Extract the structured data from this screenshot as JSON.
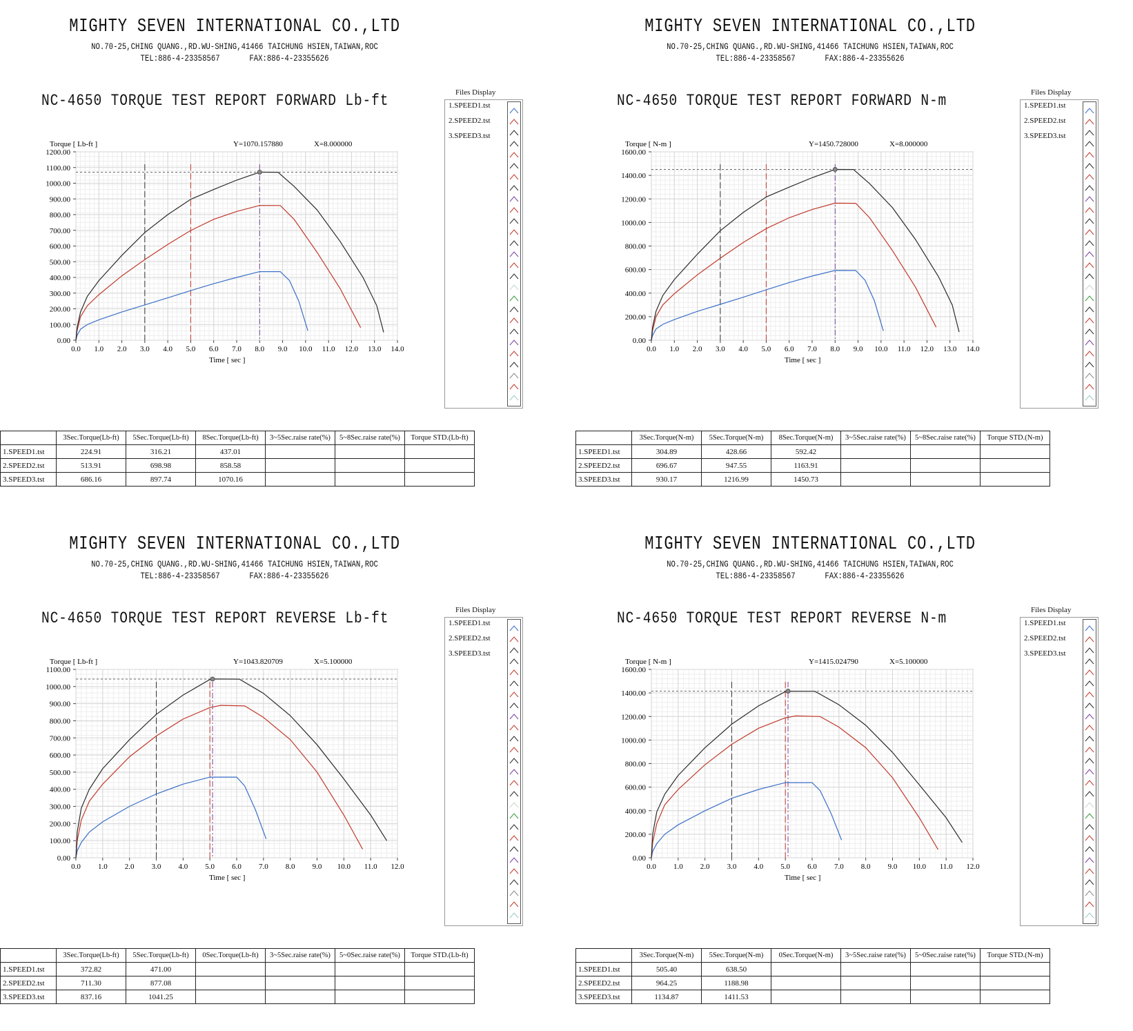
{
  "company": {
    "name": "MIGHTY SEVEN INTERNATIONAL CO.,LTD",
    "address": "NO.70-25,CHING QUANG.,RD.WU-SHING,41466 TAICHUNG HSIEN,TAIWAN,ROC",
    "tel": "TEL:886-4-23358567",
    "fax": "FAX:886-4-23355626"
  },
  "files_display": {
    "label": "Files Display",
    "files": [
      "1.SPEED1.tst",
      "2.SPEED2.tst",
      "3.SPEED3.tst"
    ]
  },
  "colors": {
    "speed1": "#3a6fc7",
    "speed2": "#c0392b",
    "speed3": "#2b2b2b"
  },
  "reports": [
    {
      "title": "NC-4650 TORQUE TEST REPORT FORWARD Lb-ft",
      "table": {
        "headers": [
          "3Sec.Torque(Lb-ft)",
          "5Sec.Torque(Lb-ft)",
          "8Sec.Torque(Lb-ft)",
          "3~5Sec.raise rate(%)",
          "5~8Sec.raise rate(%)",
          "Torque STD.(Lb-ft)"
        ],
        "rows": [
          {
            "name": "1.SPEED1.tst",
            "values": [
              "224.91",
              "316.21",
              "437.01",
              "",
              "",
              ""
            ]
          },
          {
            "name": "2.SPEED2.tst",
            "values": [
              "513.91",
              "698.98",
              "858.58",
              "",
              "",
              ""
            ]
          },
          {
            "name": "3.SPEED3.tst",
            "values": [
              "686.16",
              "897.74",
              "1070.16",
              "",
              "",
              ""
            ]
          }
        ]
      }
    },
    {
      "title": "NC-4650 TORQUE TEST REPORT FORWARD N-m",
      "table": {
        "headers": [
          "3Sec.Torque(N-m)",
          "5Sec.Torque(N-m)",
          "8Sec.Torque(N-m)",
          "3~5Sec.raise rate(%)",
          "5~8Sec.raise rate(%)",
          "Torque STD.(N-m)"
        ],
        "rows": [
          {
            "name": "1.SPEED1.tst",
            "values": [
              "304.89",
              "428.66",
              "592.42",
              "",
              "",
              ""
            ]
          },
          {
            "name": "2.SPEED2.tst",
            "values": [
              "696.67",
              "947.55",
              "1163.91",
              "",
              "",
              ""
            ]
          },
          {
            "name": "3.SPEED3.tst",
            "values": [
              "930.17",
              "1216.99",
              "1450.73",
              "",
              "",
              ""
            ]
          }
        ]
      }
    },
    {
      "title": "NC-4650 TORQUE TEST REPORT REVERSE Lb-ft",
      "table": {
        "headers": [
          "3Sec.Torque(Lb-ft)",
          "5Sec.Torque(Lb-ft)",
          "0Sec.Torque(Lb-ft)",
          "3~5Sec.raise rate(%)",
          "5~0Sec.raise rate(%)",
          "Torque STD.(Lb-ft)"
        ],
        "rows": [
          {
            "name": "1.SPEED1.tst",
            "values": [
              "372.82",
              "471.00",
              "",
              "",
              "",
              ""
            ]
          },
          {
            "name": "2.SPEED2.tst",
            "values": [
              "711.30",
              "877.08",
              "",
              "",
              "",
              ""
            ]
          },
          {
            "name": "3.SPEED3.tst",
            "values": [
              "837.16",
              "1041.25",
              "",
              "",
              "",
              ""
            ]
          }
        ]
      }
    },
    {
      "title": "NC-4650 TORQUE TEST REPORT REVERSE N-m",
      "table": {
        "headers": [
          "3Sec.Torque(N-m)",
          "5Sec.Torque(N-m)",
          "0Sec.Torque(N-m)",
          "3~5Sec.raise rate(%)",
          "5~0Sec.raise rate(%)",
          "Torque STD.(N-m)"
        ],
        "rows": [
          {
            "name": "1.SPEED1.tst",
            "values": [
              "505.40",
              "638.50",
              "",
              "",
              "",
              ""
            ]
          },
          {
            "name": "2.SPEED2.tst",
            "values": [
              "964.25",
              "1188.98",
              "",
              "",
              "",
              ""
            ]
          },
          {
            "name": "3.SPEED3.tst",
            "values": [
              "1134.87",
              "1411.53",
              "",
              "",
              "",
              ""
            ]
          }
        ]
      }
    }
  ],
  "chart_data": [
    {
      "type": "line",
      "title": "NC-4650 TORQUE TEST REPORT FORWARD Lb-ft",
      "ylabel": "Torque [ Lb-ft ]",
      "xlabel": "Time [ sec ]",
      "readout_y": "Y=1070.157880",
      "readout_x": "X=8.000000",
      "ylim": [
        0,
        1200
      ],
      "yticks": [
        "0.00",
        "100.00",
        "200.00",
        "300.00",
        "400.00",
        "500.00",
        "600.00",
        "700.00",
        "800.00",
        "900.00",
        "1000.00",
        "1100.00",
        "1200.00"
      ],
      "xlim": [
        0,
        14
      ],
      "xticks": [
        "0.0",
        "1.0",
        "2.0",
        "3.0",
        "4.0",
        "5.0",
        "6.0",
        "7.0",
        "8.0",
        "9.0",
        "10.0",
        "11.0",
        "12.0",
        "13.0",
        "14.0"
      ],
      "markers": [
        3,
        5,
        8
      ],
      "cursor": {
        "x": 8.0,
        "y": 1070.16
      },
      "grid": true,
      "series": [
        {
          "name": "1.SPEED1.tst",
          "x": [
            0,
            0.05,
            0.2,
            0.5,
            1,
            2,
            3,
            4,
            5,
            6,
            7,
            8,
            8.9,
            9.3,
            9.7,
            10.1
          ],
          "y": [
            0,
            30,
            70,
            100,
            130,
            180,
            224.91,
            270,
            316.21,
            360,
            400,
            437.01,
            437,
            380,
            250,
            60
          ]
        },
        {
          "name": "2.SPEED2.tst",
          "x": [
            0,
            0.05,
            0.2,
            0.5,
            1,
            2,
            3,
            4,
            5,
            6,
            7,
            8,
            8.9,
            9.5,
            10.5,
            11.5,
            12.4
          ],
          "y": [
            0,
            60,
            150,
            220,
            290,
            410,
            513.91,
            610,
            698.98,
            770,
            820,
            858.58,
            858,
            770,
            560,
            330,
            80
          ]
        },
        {
          "name": "3.SPEED3.tst",
          "x": [
            0,
            0.05,
            0.2,
            0.5,
            1,
            2,
            3,
            4,
            5,
            6,
            7,
            8,
            8.8,
            9.5,
            10.5,
            11.5,
            12.5,
            13.1,
            13.4
          ],
          "y": [
            0,
            80,
            180,
            280,
            380,
            540,
            686.16,
            800,
            897.74,
            960,
            1020,
            1070.16,
            1070,
            980,
            830,
            630,
            400,
            220,
            50
          ]
        }
      ]
    },
    {
      "type": "line",
      "title": "NC-4650 TORQUE TEST REPORT FORWARD N-m",
      "ylabel": "Torque [ N-m ]",
      "xlabel": "Time [ sec ]",
      "readout_y": "Y=1450.728000",
      "readout_x": "X=8.000000",
      "ylim": [
        0,
        1600
      ],
      "yticks": [
        "0.00",
        "200.00",
        "400.00",
        "600.00",
        "800.00",
        "1000.00",
        "1200.00",
        "1400.00",
        "1600.00"
      ],
      "xlim": [
        0,
        14
      ],
      "xticks": [
        "0.0",
        "1.0",
        "2.0",
        "3.0",
        "4.0",
        "5.0",
        "6.0",
        "7.0",
        "8.0",
        "9.0",
        "10.0",
        "11.0",
        "12.0",
        "13.0",
        "14.0"
      ],
      "markers": [
        3,
        5,
        8
      ],
      "cursor": {
        "x": 8.0,
        "y": 1450.73
      },
      "grid": true,
      "series": [
        {
          "name": "1.SPEED1.tst",
          "x": [
            0,
            0.05,
            0.2,
            0.5,
            1,
            2,
            3,
            4,
            5,
            6,
            7,
            8,
            8.9,
            9.3,
            9.7,
            10.1
          ],
          "y": [
            0,
            40,
            95,
            135,
            175,
            245,
            304.89,
            365,
            428.66,
            490,
            545,
            592.42,
            592,
            510,
            340,
            80
          ]
        },
        {
          "name": "2.SPEED2.tst",
          "x": [
            0,
            0.05,
            0.2,
            0.5,
            1,
            2,
            3,
            4,
            5,
            6,
            7,
            8,
            8.9,
            9.5,
            10.5,
            11.5,
            12.4
          ],
          "y": [
            0,
            80,
            200,
            300,
            395,
            555,
            696.67,
            830,
            947.55,
            1040,
            1110,
            1163.91,
            1163,
            1040,
            760,
            450,
            110
          ]
        },
        {
          "name": "3.SPEED3.tst",
          "x": [
            0,
            0.05,
            0.2,
            0.5,
            1,
            2,
            3,
            4,
            5,
            6,
            7,
            8,
            8.8,
            9.5,
            10.5,
            11.5,
            12.5,
            13.1,
            13.4
          ],
          "y": [
            0,
            110,
            245,
            380,
            515,
            730,
            930.17,
            1085,
            1216.99,
            1300,
            1380,
            1450.73,
            1450,
            1330,
            1125,
            855,
            540,
            300,
            70
          ]
        }
      ]
    },
    {
      "type": "line",
      "title": "NC-4650 TORQUE TEST REPORT REVERSE Lb-ft",
      "ylabel": "Torque [ Lb-ft ]",
      "xlabel": "Time [ sec ]",
      "readout_y": "Y=1043.820709",
      "readout_x": "X=5.100000",
      "ylim": [
        0,
        1100
      ],
      "yticks": [
        "0.00",
        "100.00",
        "200.00",
        "300.00",
        "400.00",
        "500.00",
        "600.00",
        "700.00",
        "800.00",
        "900.00",
        "1000.00",
        "1100.00"
      ],
      "xlim": [
        0,
        12
      ],
      "xticks": [
        "0.0",
        "1.0",
        "2.0",
        "3.0",
        "4.0",
        "5.0",
        "6.0",
        "7.0",
        "8.0",
        "9.0",
        "10.0",
        "11.0",
        "12.0"
      ],
      "markers": [
        3,
        5,
        5.1
      ],
      "cursor": {
        "x": 5.1,
        "y": 1043.82
      },
      "grid": true,
      "series": [
        {
          "name": "1.SPEED1.tst",
          "x": [
            0,
            0.05,
            0.2,
            0.5,
            1,
            2,
            3,
            4,
            5,
            6,
            6.3,
            6.7,
            7.1
          ],
          "y": [
            0,
            40,
            90,
            150,
            210,
            300,
            372.82,
            430,
            471.0,
            471,
            420,
            280,
            110
          ]
        },
        {
          "name": "2.SPEED2.tst",
          "x": [
            0,
            0.05,
            0.2,
            0.5,
            1,
            2,
            3,
            4,
            5,
            5.4,
            6.3,
            7,
            8,
            9,
            10,
            10.7
          ],
          "y": [
            0,
            100,
            220,
            330,
            430,
            590,
            711.3,
            810,
            877.08,
            890,
            887,
            820,
            690,
            500,
            250,
            50
          ]
        },
        {
          "name": "3.SPEED3.tst",
          "x": [
            0,
            0.05,
            0.2,
            0.5,
            1,
            2,
            3,
            4,
            5,
            5.1,
            6.1,
            7,
            8,
            9,
            10,
            11,
            11.6
          ],
          "y": [
            0,
            150,
            290,
            400,
            520,
            690,
            837.16,
            950,
            1041.25,
            1043.82,
            1043,
            960,
            830,
            660,
            460,
            250,
            100
          ]
        }
      ]
    },
    {
      "type": "line",
      "title": "NC-4650 TORQUE TEST REPORT REVERSE N-m",
      "ylabel": "Torque [ N-m ]",
      "xlabel": "Time [ sec ]",
      "readout_y": "Y=1415.024790",
      "readout_x": "X=5.100000",
      "ylim": [
        0,
        1600
      ],
      "yticks": [
        "0.00",
        "200.00",
        "400.00",
        "600.00",
        "800.00",
        "1000.00",
        "1200.00",
        "1400.00",
        "1600.00"
      ],
      "xlim": [
        0,
        12
      ],
      "xticks": [
        "0.0",
        "1.0",
        "2.0",
        "3.0",
        "4.0",
        "5.0",
        "6.0",
        "7.0",
        "8.0",
        "9.0",
        "10.0",
        "11.0",
        "12.0"
      ],
      "markers": [
        3,
        5,
        5.1
      ],
      "cursor": {
        "x": 5.1,
        "y": 1415.02
      },
      "grid": true,
      "series": [
        {
          "name": "1.SPEED1.tst",
          "x": [
            0,
            0.05,
            0.2,
            0.5,
            1,
            2,
            3,
            4,
            5,
            6,
            6.3,
            6.7,
            7.1
          ],
          "y": [
            0,
            55,
            120,
            200,
            280,
            400,
            505.4,
            580,
            638.5,
            638,
            570,
            380,
            150
          ]
        },
        {
          "name": "2.SPEED2.tst",
          "x": [
            0,
            0.05,
            0.2,
            0.5,
            1,
            2,
            3,
            4,
            5,
            5.4,
            6.3,
            7,
            8,
            9,
            10,
            10.7
          ],
          "y": [
            0,
            130,
            290,
            450,
            580,
            790,
            964.25,
            1100,
            1188.98,
            1205,
            1200,
            1110,
            935,
            680,
            340,
            70
          ]
        },
        {
          "name": "3.SPEED3.tst",
          "x": [
            0,
            0.05,
            0.2,
            0.5,
            1,
            2,
            3,
            4,
            5,
            5.1,
            6.1,
            7,
            8,
            9,
            10,
            11,
            11.6
          ],
          "y": [
            0,
            200,
            390,
            540,
            700,
            935,
            1134.87,
            1290,
            1411.53,
            1415.02,
            1414,
            1300,
            1125,
            895,
            620,
            340,
            130
          ]
        }
      ]
    }
  ]
}
